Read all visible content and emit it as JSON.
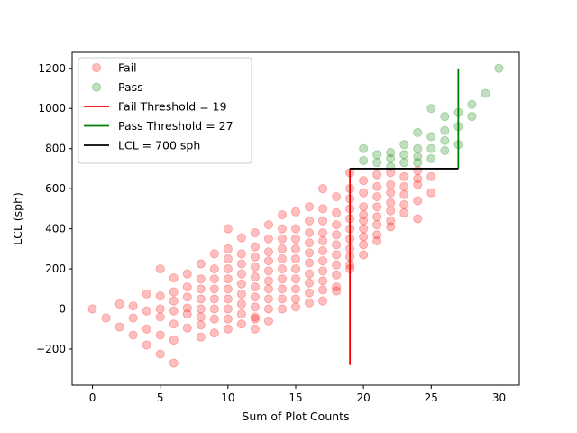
{
  "chart_data": {
    "type": "scatter",
    "title": "",
    "xlabel": "Sum of Plot Counts",
    "ylabel": "LCL (sph)",
    "xlim": [
      -1.5,
      31.5
    ],
    "ylim": [
      -380,
      1280
    ],
    "xticks": [
      0,
      5,
      10,
      15,
      20,
      25,
      30
    ],
    "yticks": [
      -200,
      0,
      200,
      400,
      600,
      800,
      1000,
      1200
    ],
    "xtick_labels": [
      "0",
      "5",
      "10",
      "15",
      "20",
      "25",
      "30"
    ],
    "ytick_labels": [
      "−200",
      "0",
      "200",
      "400",
      "600",
      "800",
      "1000",
      "1200"
    ],
    "grid": false,
    "legend_position": "top-left",
    "legend": [
      {
        "label": "Fail",
        "kind": "marker",
        "color": "#ff0000"
      },
      {
        "label": "Pass",
        "kind": "marker",
        "color": "#008000"
      },
      {
        "label": "Fail Threshold = 19",
        "kind": "line",
        "color": "#ff0000"
      },
      {
        "label": "Pass Threshold = 27",
        "kind": "line",
        "color": "#008000"
      },
      {
        "label": "LCL = 700 sph",
        "kind": "line",
        "color": "#000000"
      }
    ],
    "series": [
      {
        "name": "Fail",
        "color": "#ff0000",
        "points": [
          [
            0,
            0
          ],
          [
            1,
            -45
          ],
          [
            2,
            -90
          ],
          [
            2,
            25
          ],
          [
            3,
            -130
          ],
          [
            3,
            15
          ],
          [
            3,
            -45
          ],
          [
            4,
            -180
          ],
          [
            4,
            75
          ],
          [
            4,
            -100
          ],
          [
            4,
            -10
          ],
          [
            5,
            200
          ],
          [
            5,
            65
          ],
          [
            5,
            -40
          ],
          [
            5,
            -130
          ],
          [
            5,
            -225
          ],
          [
            5,
            0
          ],
          [
            6,
            155
          ],
          [
            6,
            85
          ],
          [
            6,
            -10
          ],
          [
            6,
            -75
          ],
          [
            6,
            -155
          ],
          [
            6,
            -270
          ],
          [
            6,
            40
          ],
          [
            7,
            175
          ],
          [
            7,
            110
          ],
          [
            7,
            60
          ],
          [
            7,
            -25
          ],
          [
            7,
            -95
          ],
          [
            7,
            5
          ],
          [
            8,
            225
          ],
          [
            8,
            150
          ],
          [
            8,
            100
          ],
          [
            8,
            50
          ],
          [
            8,
            0
          ],
          [
            8,
            -80
          ],
          [
            8,
            -140
          ],
          [
            8,
            -40
          ],
          [
            9,
            275
          ],
          [
            9,
            200
          ],
          [
            9,
            150
          ],
          [
            9,
            100
          ],
          [
            9,
            50
          ],
          [
            9,
            0
          ],
          [
            9,
            -50
          ],
          [
            9,
            -120
          ],
          [
            10,
            400
          ],
          [
            10,
            300
          ],
          [
            10,
            250
          ],
          [
            10,
            200
          ],
          [
            10,
            150
          ],
          [
            10,
            100
          ],
          [
            10,
            50
          ],
          [
            10,
            0
          ],
          [
            10,
            -50
          ],
          [
            10,
            -100
          ],
          [
            11,
            355
          ],
          [
            11,
            275
          ],
          [
            11,
            225
          ],
          [
            11,
            175
          ],
          [
            11,
            125
          ],
          [
            11,
            75
          ],
          [
            11,
            25
          ],
          [
            11,
            -25
          ],
          [
            11,
            -75
          ],
          [
            12,
            380
          ],
          [
            12,
            310
          ],
          [
            12,
            260
          ],
          [
            12,
            210
          ],
          [
            12,
            160
          ],
          [
            12,
            110
          ],
          [
            12,
            60
          ],
          [
            12,
            10
          ],
          [
            12,
            -40
          ],
          [
            12,
            -100
          ],
          [
            12,
            -50
          ],
          [
            13,
            420
          ],
          [
            13,
            350
          ],
          [
            13,
            285
          ],
          [
            13,
            240
          ],
          [
            13,
            190
          ],
          [
            13,
            140
          ],
          [
            13,
            100
          ],
          [
            13,
            50
          ],
          [
            13,
            0
          ],
          [
            13,
            -60
          ],
          [
            14,
            470
          ],
          [
            14,
            400
          ],
          [
            14,
            350
          ],
          [
            14,
            300
          ],
          [
            14,
            250
          ],
          [
            14,
            200
          ],
          [
            14,
            150
          ],
          [
            14,
            100
          ],
          [
            14,
            50
          ],
          [
            14,
            0
          ],
          [
            15,
            485
          ],
          [
            15,
            400
          ],
          [
            15,
            350
          ],
          [
            15,
            300
          ],
          [
            15,
            250
          ],
          [
            15,
            200
          ],
          [
            15,
            150
          ],
          [
            15,
            100
          ],
          [
            15,
            50
          ],
          [
            15,
            10
          ],
          [
            16,
            510
          ],
          [
            16,
            440
          ],
          [
            16,
            380
          ],
          [
            16,
            330
          ],
          [
            16,
            280
          ],
          [
            16,
            230
          ],
          [
            16,
            175
          ],
          [
            16,
            130
          ],
          [
            16,
            80
          ],
          [
            16,
            30
          ],
          [
            17,
            600
          ],
          [
            17,
            500
          ],
          [
            17,
            440
          ],
          [
            17,
            380
          ],
          [
            17,
            340
          ],
          [
            17,
            290
          ],
          [
            17,
            240
          ],
          [
            17,
            190
          ],
          [
            17,
            140
          ],
          [
            17,
            95
          ],
          [
            17,
            40
          ],
          [
            18,
            560
          ],
          [
            18,
            480
          ],
          [
            18,
            420
          ],
          [
            18,
            370
          ],
          [
            18,
            320
          ],
          [
            18,
            270
          ],
          [
            18,
            220
          ],
          [
            18,
            170
          ],
          [
            18,
            110
          ],
          [
            18,
            90
          ],
          [
            19,
            680
          ],
          [
            19,
            600
          ],
          [
            19,
            550
          ],
          [
            19,
            500
          ],
          [
            19,
            450
          ],
          [
            19,
            400
          ],
          [
            19,
            350
          ],
          [
            19,
            300
          ],
          [
            19,
            260
          ],
          [
            19,
            220
          ],
          [
            19,
            200
          ],
          [
            20,
            640
          ],
          [
            20,
            580
          ],
          [
            20,
            510
          ],
          [
            20,
            470
          ],
          [
            20,
            440
          ],
          [
            20,
            400
          ],
          [
            20,
            360
          ],
          [
            20,
            320
          ],
          [
            20,
            270
          ],
          [
            21,
            670
          ],
          [
            21,
            610
          ],
          [
            21,
            560
          ],
          [
            21,
            510
          ],
          [
            21,
            460
          ],
          [
            21,
            420
          ],
          [
            21,
            370
          ],
          [
            21,
            340
          ],
          [
            22,
            680
          ],
          [
            22,
            620
          ],
          [
            22,
            580
          ],
          [
            22,
            530
          ],
          [
            22,
            490
          ],
          [
            22,
            440
          ],
          [
            22,
            410
          ],
          [
            23,
            660
          ],
          [
            23,
            610
          ],
          [
            23,
            570
          ],
          [
            23,
            520
          ],
          [
            23,
            480
          ],
          [
            24,
            690
          ],
          [
            24,
            650
          ],
          [
            24,
            620
          ],
          [
            24,
            540
          ],
          [
            24,
            450
          ],
          [
            25,
            660
          ],
          [
            25,
            580
          ]
        ]
      },
      {
        "name": "Pass",
        "color": "#008000",
        "points": [
          [
            20,
            800
          ],
          [
            20,
            740
          ],
          [
            21,
            770
          ],
          [
            21,
            730
          ],
          [
            22,
            780
          ],
          [
            22,
            750
          ],
          [
            22,
            710
          ],
          [
            23,
            820
          ],
          [
            23,
            770
          ],
          [
            23,
            730
          ],
          [
            24,
            880
          ],
          [
            24,
            800
          ],
          [
            24,
            760
          ],
          [
            24,
            730
          ],
          [
            25,
            1000
          ],
          [
            25,
            860
          ],
          [
            25,
            800
          ],
          [
            25,
            750
          ],
          [
            26,
            960
          ],
          [
            26,
            890
          ],
          [
            26,
            840
          ],
          [
            26,
            790
          ],
          [
            27,
            980
          ],
          [
            27,
            910
          ],
          [
            27,
            820
          ],
          [
            28,
            1020
          ],
          [
            28,
            960
          ],
          [
            29,
            1075
          ],
          [
            30,
            1200
          ]
        ]
      }
    ],
    "lines": [
      {
        "name": "Fail Threshold = 19",
        "color": "#ff0000",
        "points": [
          [
            19,
            -280
          ],
          [
            19,
            700
          ]
        ]
      },
      {
        "name": "Pass Threshold = 27",
        "color": "#008000",
        "points": [
          [
            27,
            700
          ],
          [
            27,
            1200
          ]
        ]
      },
      {
        "name": "LCL = 700 sph",
        "color": "#000000",
        "points": [
          [
            19,
            700
          ],
          [
            27,
            700
          ]
        ]
      }
    ]
  }
}
